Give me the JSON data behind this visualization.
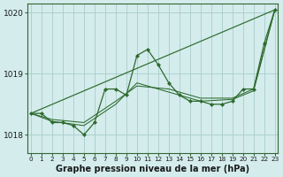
{
  "xlabel": "Graphe pression niveau de la mer (hPa)",
  "background_color": "#d4ecec",
  "grid_color": "#a8cccc",
  "line_color": "#2d6a2d",
  "ylim": [
    1017.7,
    1020.15
  ],
  "xlim": [
    -0.3,
    23.3
  ],
  "yticks": [
    1018,
    1019,
    1020
  ],
  "straight_line": {
    "x": [
      0,
      23
    ],
    "y": [
      1018.35,
      1020.05
    ]
  },
  "smooth_line1": {
    "x": [
      0,
      2,
      5,
      8,
      10,
      13,
      16,
      19,
      21,
      23
    ],
    "y": [
      1018.35,
      1018.25,
      1018.2,
      1018.55,
      1018.8,
      1018.75,
      1018.6,
      1018.6,
      1018.75,
      1020.05
    ]
  },
  "smooth_line2": {
    "x": [
      0,
      2,
      5,
      8,
      10,
      13,
      16,
      19,
      21,
      23
    ],
    "y": [
      1018.35,
      1018.22,
      1018.15,
      1018.5,
      1018.85,
      1018.7,
      1018.55,
      1018.58,
      1018.72,
      1020.05
    ]
  },
  "main_line": {
    "x": [
      0,
      1,
      2,
      3,
      4,
      5,
      6,
      7,
      8,
      9,
      10,
      11,
      12,
      13,
      14,
      15,
      16,
      17,
      18,
      19,
      20,
      21,
      22,
      23
    ],
    "y": [
      1018.35,
      1018.35,
      1018.2,
      1018.2,
      1018.15,
      1018.0,
      1018.2,
      1018.75,
      1018.75,
      1018.65,
      1019.3,
      1019.4,
      1019.15,
      1018.85,
      1018.65,
      1018.55,
      1018.55,
      1018.5,
      1018.5,
      1018.55,
      1018.75,
      1018.75,
      1019.5,
      1020.05
    ]
  }
}
